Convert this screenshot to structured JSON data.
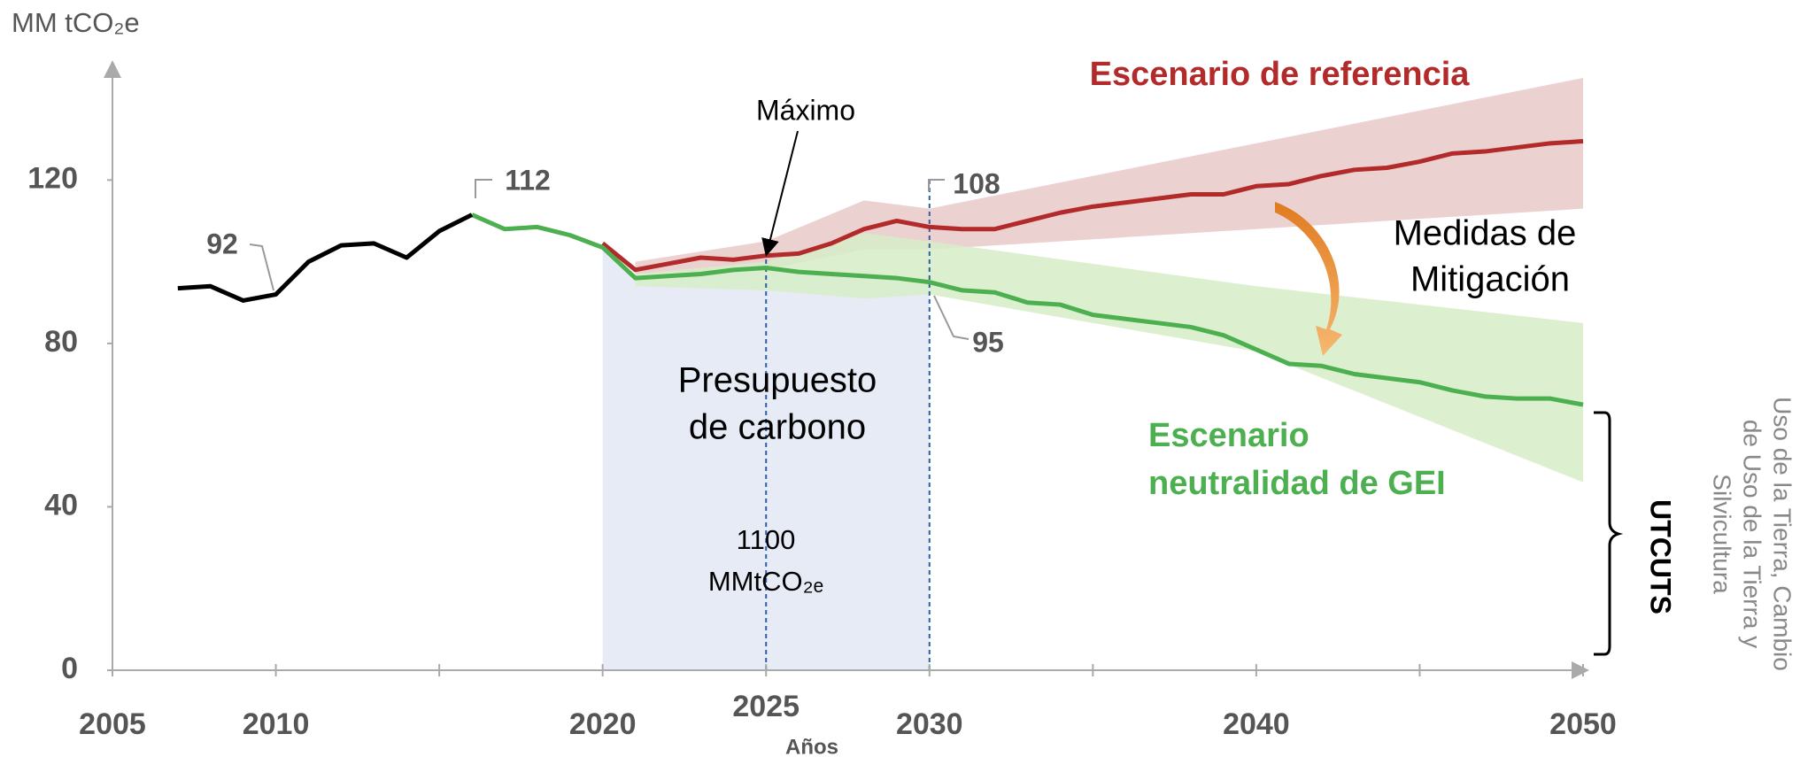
{
  "chart_data": {
    "type": "line",
    "ylabel": "MM tCO₂e",
    "xlabel": "Años",
    "xlim": [
      2005,
      2050
    ],
    "ylim": [
      0,
      145
    ],
    "xticks": [
      2005,
      2010,
      2020,
      2025,
      2030,
      2040,
      2050
    ],
    "minor_xticks": [
      2015,
      2035,
      2045
    ],
    "yticks": [
      0,
      40,
      80,
      120
    ],
    "budget_range": [
      2020,
      2030
    ],
    "dashed_lines": [
      {
        "x": 2025,
        "top": 102
      },
      {
        "x": 2030,
        "top": 120
      }
    ],
    "bands": [
      {
        "color": "#e9c9c9",
        "x": [
          2021,
          2025,
          2028,
          2030,
          2050
        ],
        "upper": [
          100,
          105,
          115,
          113,
          145
        ],
        "lower": [
          97,
          98,
          103,
          103,
          113
        ]
      },
      {
        "color": "#d6edc8",
        "x": [
          2021,
          2025,
          2028,
          2030,
          2040,
          2050
        ],
        "upper": [
          97,
          100,
          107,
          105,
          94,
          85
        ],
        "lower": [
          94,
          93,
          91,
          92,
          78,
          46
        ]
      }
    ],
    "series": [
      {
        "color": "#b22a2a",
        "x": [
          2020,
          2021,
          2022,
          2023,
          2024,
          2025,
          2026,
          2027,
          2028,
          2029,
          2030,
          2031,
          2032,
          2033,
          2034,
          2035,
          2036,
          2037,
          2038,
          2039,
          2040,
          2041,
          2042,
          2043,
          2044,
          2045,
          2046,
          2047,
          2048,
          2049,
          2050
        ],
        "values": [
          104.5,
          98,
          99.5,
          101,
          100.5,
          101.5,
          102,
          104.5,
          108,
          110,
          108.5,
          108,
          108,
          110,
          112,
          113.5,
          114.5,
          115.5,
          116.5,
          116.5,
          118.5,
          119,
          121,
          122.5,
          123,
          124.5,
          126.5,
          127,
          128,
          129,
          129.5
        ]
      },
      {
        "color": "#4caf50",
        "x": [
          2016,
          2017,
          2018,
          2019,
          2020,
          2021,
          2022,
          2023,
          2024,
          2025,
          2026,
          2027,
          2028,
          2029,
          2030,
          2031,
          2032,
          2033,
          2034,
          2035,
          2036,
          2037,
          2038,
          2039,
          2040,
          2041,
          2042,
          2043,
          2044,
          2045,
          2046,
          2047,
          2048,
          2049,
          2050
        ],
        "values": [
          111.5,
          108,
          108.5,
          106.5,
          103.5,
          96,
          96.5,
          97,
          98,
          98.5,
          97.5,
          97,
          96.5,
          96,
          95,
          93,
          92.5,
          90,
          89.5,
          87,
          86,
          85,
          84,
          82,
          78.5,
          75,
          74.5,
          72.5,
          71.5,
          70.5,
          68.5,
          67,
          66.5,
          66.5,
          65
        ]
      },
      {
        "color": "#000000",
        "x": [
          2007,
          2008,
          2009,
          2010,
          2011,
          2012,
          2013,
          2014,
          2015,
          2016
        ],
        "values": [
          93.5,
          94,
          90.5,
          92,
          100,
          104,
          104.5,
          101,
          107.5,
          111.5
        ]
      }
    ],
    "annotations": [
      "92",
      "112",
      "108",
      "95",
      "Máximo",
      "Escenario de referencia",
      "Medidas de",
      "Mitigación",
      "Presupuesto",
      "de carbono",
      "1100",
      "MMtCO₂ₑ",
      "Escenario",
      "neutralidad de GEI",
      "UTCUTS",
      "Uso de la Tierra, Cambio",
      "de Uso de la Tierra y",
      "Silvicultura"
    ]
  }
}
